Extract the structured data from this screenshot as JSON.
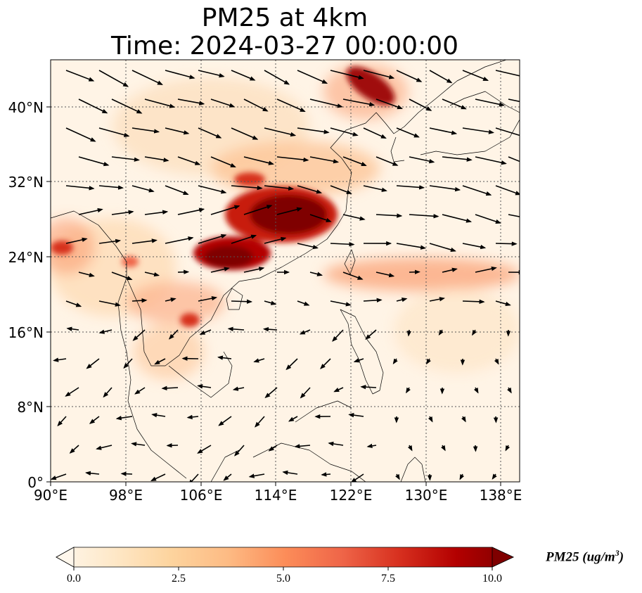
{
  "figure": {
    "title_line1": "PM25 at 4km",
    "title_line2": "Time: 2024-03-27 00:00:00"
  },
  "map": {
    "lon_range": [
      90,
      140
    ],
    "lat_range": [
      0,
      45
    ],
    "lon_ticks": [
      "90°E",
      "98°E",
      "106°E",
      "114°E",
      "122°E",
      "130°E",
      "138°E"
    ],
    "lat_ticks": [
      "0°",
      "8°N",
      "16°N",
      "24°N",
      "32°N",
      "40°N"
    ],
    "gridlines": true,
    "coastlines": true,
    "wind_vectors": true
  },
  "colorbar": {
    "label_main": "PM25 (ug/m",
    "label_exp": "3",
    "label_close": ")",
    "ticks": [
      "0.0",
      "2.5",
      "5.0",
      "7.5",
      "10.0"
    ],
    "min": 0,
    "max": 10,
    "colormap": [
      "#fff7ec",
      "#fee8c8",
      "#fdd49e",
      "#fdbb84",
      "#fc8d59",
      "#ef6548",
      "#d7301f",
      "#b30000",
      "#7f0000"
    ],
    "extend": "both"
  }
}
